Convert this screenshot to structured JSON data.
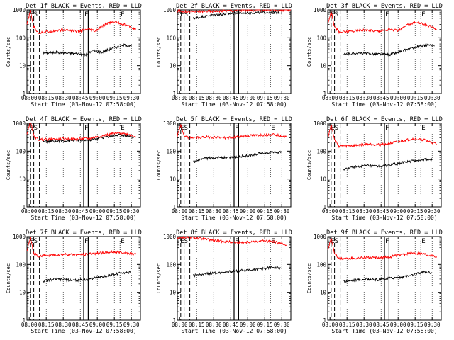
{
  "figure": {
    "time_axis_label": "Start Time (03-Nov-12 07:58:00)",
    "y_axis_label": "Counts/sec",
    "x_tick_labels": [
      "08:00",
      "08:15",
      "08:30",
      "08:45",
      "09:00",
      "09:15",
      "09:30"
    ],
    "y_tick_labels": [
      "1",
      "10",
      "100",
      "1000"
    ],
    "marker_labels": [
      "ES",
      "F",
      "E"
    ],
    "colors": {
      "events": "#000000",
      "lld": "#ff0000",
      "background": "#ffffff"
    }
  },
  "chart_data": [
    {
      "type": "line",
      "title": "Det 1f BLACK = Events, RED = LLD",
      "xlabel": "Start Time (03-Nov-12 07:58:00)",
      "ylabel": "Counts/sec",
      "xlim_minutes": [
        0,
        100
      ],
      "ylim": [
        1,
        1000
      ],
      "yscale": "log",
      "series": [
        {
          "name": "Events",
          "color": "#000000",
          "points": [
            [
              14,
              28
            ],
            [
              25,
              30
            ],
            [
              35,
              28
            ],
            [
              45,
              27
            ],
            [
              52,
              24
            ],
            [
              58,
              35
            ],
            [
              66,
              30
            ],
            [
              75,
              42
            ],
            [
              86,
              55
            ],
            [
              92,
              50
            ]
          ]
        },
        {
          "name": "LLD",
          "color": "#ff0000",
          "points": [
            [
              0,
              300
            ],
            [
              3,
              900
            ],
            [
              6,
              250
            ],
            [
              10,
              150
            ],
            [
              25,
              180
            ],
            [
              35,
              190
            ],
            [
              45,
              170
            ],
            [
              55,
              200
            ],
            [
              60,
              170
            ],
            [
              70,
              320
            ],
            [
              78,
              380
            ],
            [
              86,
              300
            ],
            [
              96,
              200
            ]
          ]
        }
      ],
      "vertical_markers": [
        {
          "label": "ES",
          "x": 2
        },
        {
          "label": "F",
          "x": 50
        },
        {
          "label": "E",
          "x": 82
        }
      ]
    },
    {
      "type": "line",
      "title": "Det 2f BLACK = Events, RED = LLD",
      "xlabel": "Start Time (03-Nov-12 07:58:00)",
      "ylabel": "Counts/sec",
      "xlim_minutes": [
        0,
        100
      ],
      "ylim": [
        1,
        1000
      ],
      "yscale": "log",
      "series": [
        {
          "name": "Events",
          "color": "#000000",
          "points": [
            [
              14,
              500
            ],
            [
              30,
              650
            ],
            [
              40,
              700
            ],
            [
              50,
              750
            ],
            [
              60,
              780
            ],
            [
              70,
              800
            ],
            [
              82,
              820
            ],
            [
              92,
              800
            ]
          ]
        },
        {
          "name": "LLD",
          "color": "#ff0000",
          "points": [
            [
              0,
              900
            ],
            [
              10,
              850
            ],
            [
              30,
              900
            ],
            [
              50,
              950
            ],
            [
              70,
              980
            ],
            [
              100,
              980
            ]
          ]
        }
      ],
      "vertical_markers": [
        {
          "label": "ES",
          "x": 2
        },
        {
          "label": "F",
          "x": 50
        },
        {
          "label": "E",
          "x": 82
        }
      ]
    },
    {
      "type": "line",
      "title": "Det 3f BLACK = Events, RED = LLD",
      "xlabel": "Start Time (03-Nov-12 07:58:00)",
      "ylabel": "Counts/sec",
      "xlim_minutes": [
        0,
        100
      ],
      "ylim": [
        1,
        1000
      ],
      "yscale": "log",
      "series": [
        {
          "name": "Events",
          "color": "#000000",
          "points": [
            [
              14,
              25
            ],
            [
              25,
              28
            ],
            [
              35,
              27
            ],
            [
              45,
              26
            ],
            [
              55,
              25
            ],
            [
              62,
              30
            ],
            [
              70,
              38
            ],
            [
              80,
              48
            ],
            [
              88,
              55
            ],
            [
              94,
              50
            ]
          ]
        },
        {
          "name": "LLD",
          "color": "#ff0000",
          "points": [
            [
              0,
              300
            ],
            [
              3,
              900
            ],
            [
              6,
              250
            ],
            [
              10,
              160
            ],
            [
              25,
              180
            ],
            [
              35,
              190
            ],
            [
              45,
              175
            ],
            [
              55,
              200
            ],
            [
              62,
              180
            ],
            [
              72,
              320
            ],
            [
              80,
              360
            ],
            [
              88,
              280
            ],
            [
              96,
              200
            ]
          ]
        }
      ],
      "vertical_markers": [
        {
          "label": "ES",
          "x": 2
        },
        {
          "label": "F",
          "x": 50
        },
        {
          "label": "E",
          "x": 82
        }
      ]
    },
    {
      "type": "line",
      "title": "Det 4f BLACK = Events, RED = LLD",
      "xlabel": "Start Time (03-Nov-12 07:58:00)",
      "ylabel": "Counts/sec",
      "xlim_minutes": [
        0,
        100
      ],
      "ylim": [
        1,
        1000
      ],
      "yscale": "log",
      "series": [
        {
          "name": "Events",
          "color": "#000000",
          "points": [
            [
              14,
              220
            ],
            [
              25,
              230
            ],
            [
              35,
              240
            ],
            [
              45,
              240
            ],
            [
              55,
              250
            ],
            [
              65,
              300
            ],
            [
              75,
              350
            ],
            [
              82,
              380
            ],
            [
              90,
              350
            ],
            [
              94,
              300
            ]
          ]
        },
        {
          "name": "LLD",
          "color": "#ff0000",
          "points": [
            [
              0,
              400
            ],
            [
              3,
              1200
            ],
            [
              6,
              350
            ],
            [
              10,
              260
            ],
            [
              25,
              270
            ],
            [
              35,
              275
            ],
            [
              45,
              270
            ],
            [
              55,
              290
            ],
            [
              65,
              340
            ],
            [
              75,
              420
            ],
            [
              82,
              450
            ],
            [
              90,
              400
            ],
            [
              96,
              330
            ]
          ]
        }
      ],
      "vertical_markers": [
        {
          "label": "ES",
          "x": 2
        },
        {
          "label": "F",
          "x": 50
        },
        {
          "label": "E",
          "x": 82
        }
      ]
    },
    {
      "type": "line",
      "title": "Det 5f BLACK = Events, RED = LLD",
      "xlabel": "Start Time (03-Nov-12 07:58:00)",
      "ylabel": "Counts/sec",
      "xlim_minutes": [
        0,
        100
      ],
      "ylim": [
        1,
        1000
      ],
      "yscale": "log",
      "series": [
        {
          "name": "Events",
          "color": "#000000",
          "points": [
            [
              14,
              40
            ],
            [
              25,
              55
            ],
            [
              35,
              60
            ],
            [
              45,
              58
            ],
            [
              55,
              65
            ],
            [
              65,
              70
            ],
            [
              75,
              85
            ],
            [
              85,
              95
            ],
            [
              92,
              90
            ]
          ]
        },
        {
          "name": "LLD",
          "color": "#ff0000",
          "points": [
            [
              0,
              350
            ],
            [
              3,
              900
            ],
            [
              6,
              330
            ],
            [
              10,
              300
            ],
            [
              25,
              320
            ],
            [
              35,
              310
            ],
            [
              45,
              300
            ],
            [
              55,
              330
            ],
            [
              65,
              360
            ],
            [
              75,
              380
            ],
            [
              85,
              400
            ],
            [
              96,
              330
            ]
          ]
        }
      ],
      "vertical_markers": [
        {
          "label": "ES",
          "x": 2
        },
        {
          "label": "F",
          "x": 50
        },
        {
          "label": "E",
          "x": 82
        }
      ]
    },
    {
      "type": "line",
      "title": "Det 6f BLACK = Events, RED = LLD",
      "xlabel": "Start Time (03-Nov-12 07:58:00)",
      "ylabel": "Counts/sec",
      "xlim_minutes": [
        0,
        100
      ],
      "ylim": [
        1,
        1000
      ],
      "yscale": "log",
      "series": [
        {
          "name": "Events",
          "color": "#000000",
          "points": [
            [
              14,
              22
            ],
            [
              25,
              28
            ],
            [
              35,
              30
            ],
            [
              45,
              28
            ],
            [
              55,
              32
            ],
            [
              65,
              38
            ],
            [
              75,
              45
            ],
            [
              85,
              50
            ],
            [
              92,
              48
            ]
          ]
        },
        {
          "name": "LLD",
          "color": "#ff0000",
          "points": [
            [
              0,
              300
            ],
            [
              3,
              900
            ],
            [
              6,
              250
            ],
            [
              10,
              150
            ],
            [
              25,
              160
            ],
            [
              35,
              180
            ],
            [
              45,
              170
            ],
            [
              55,
              190
            ],
            [
              65,
              230
            ],
            [
              75,
              280
            ],
            [
              85,
              250
            ],
            [
              96,
              180
            ]
          ]
        }
      ],
      "vertical_markers": [
        {
          "label": "ES",
          "x": 2
        },
        {
          "label": "F",
          "x": 50
        },
        {
          "label": "E",
          "x": 82
        }
      ]
    },
    {
      "type": "line",
      "title": "Det 7f BLACK = Events, RED = LLD",
      "xlabel": "Start Time (03-Nov-12 07:58:00)",
      "ylabel": "Counts/sec",
      "xlim_minutes": [
        0,
        100
      ],
      "ylim": [
        1,
        1000
      ],
      "yscale": "log",
      "series": [
        {
          "name": "Events",
          "color": "#000000",
          "points": [
            [
              14,
              25
            ],
            [
              25,
              30
            ],
            [
              35,
              28
            ],
            [
              45,
              27
            ],
            [
              55,
              30
            ],
            [
              65,
              35
            ],
            [
              75,
              42
            ],
            [
              85,
              52
            ],
            [
              92,
              50
            ]
          ]
        },
        {
          "name": "LLD",
          "color": "#ff0000",
          "points": [
            [
              0,
              300
            ],
            [
              3,
              900
            ],
            [
              6,
              250
            ],
            [
              10,
              200
            ],
            [
              25,
              220
            ],
            [
              35,
              230
            ],
            [
              45,
              220
            ],
            [
              55,
              240
            ],
            [
              65,
              260
            ],
            [
              75,
              280
            ],
            [
              85,
              270
            ],
            [
              96,
              230
            ]
          ]
        }
      ],
      "vertical_markers": [
        {
          "label": "ES",
          "x": 2
        },
        {
          "label": "F",
          "x": 50
        },
        {
          "label": "E",
          "x": 82
        }
      ]
    },
    {
      "type": "line",
      "title": "Det 8f BLACK = Events, RED = LLD",
      "xlabel": "Start Time (03-Nov-12 07:58:00)",
      "ylabel": "Counts/sec",
      "xlim_minutes": [
        0,
        100
      ],
      "ylim": [
        1,
        1000
      ],
      "yscale": "log",
      "series": [
        {
          "name": "Events",
          "color": "#000000",
          "points": [
            [
              14,
              40
            ],
            [
              25,
              45
            ],
            [
              35,
              50
            ],
            [
              45,
              55
            ],
            [
              55,
              60
            ],
            [
              65,
              65
            ],
            [
              75,
              70
            ],
            [
              85,
              80
            ],
            [
              92,
              75
            ]
          ]
        },
        {
          "name": "LLD",
          "color": "#ff0000",
          "points": [
            [
              0,
              900
            ],
            [
              10,
              950
            ],
            [
              25,
              800
            ],
            [
              35,
              700
            ],
            [
              45,
              650
            ],
            [
              55,
              600
            ],
            [
              65,
              650
            ],
            [
              75,
              700
            ],
            [
              85,
              650
            ],
            [
              96,
              500
            ]
          ]
        }
      ],
      "vertical_markers": [
        {
          "label": "ES",
          "x": 2
        },
        {
          "label": "F",
          "x": 50
        },
        {
          "label": "E",
          "x": 82
        }
      ]
    },
    {
      "type": "line",
      "title": "Det 9f BLACK = Events, RED = LLD",
      "xlabel": "Start Time (03-Nov-12 07:58:00)",
      "ylabel": "Counts/sec",
      "xlim_minutes": [
        0,
        100
      ],
      "ylim": [
        1,
        1000
      ],
      "yscale": "log",
      "series": [
        {
          "name": "Events",
          "color": "#000000",
          "points": [
            [
              14,
              25
            ],
            [
              25,
              28
            ],
            [
              35,
              30
            ],
            [
              45,
              28
            ],
            [
              55,
              32
            ],
            [
              65,
              35
            ],
            [
              75,
              42
            ],
            [
              85,
              55
            ],
            [
              92,
              50
            ]
          ]
        },
        {
          "name": "LLD",
          "color": "#ff0000",
          "points": [
            [
              0,
              300
            ],
            [
              3,
              900
            ],
            [
              6,
              250
            ],
            [
              10,
              160
            ],
            [
              25,
              170
            ],
            [
              35,
              180
            ],
            [
              45,
              170
            ],
            [
              55,
              190
            ],
            [
              65,
              220
            ],
            [
              75,
              260
            ],
            [
              85,
              240
            ],
            [
              96,
              190
            ]
          ]
        }
      ],
      "vertical_markers": [
        {
          "label": "ES",
          "x": 2
        },
        {
          "label": "F",
          "x": 50
        },
        {
          "label": "E",
          "x": 82
        }
      ]
    }
  ]
}
